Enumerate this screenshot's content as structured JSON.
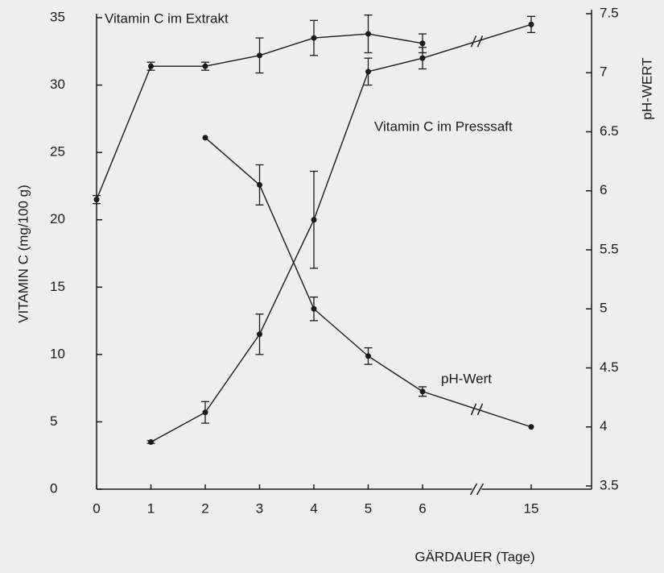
{
  "chart_data": {
    "type": "line",
    "ylabel": "VITAMIN C (mg/100 g)",
    "y2label": "pH-WERT",
    "xlabel": "GÄRDAUER (Tage)",
    "x": [
      0,
      1,
      2,
      3,
      4,
      5,
      6,
      15
    ],
    "xlim": [
      0,
      15
    ],
    "xticks": [
      0,
      1,
      2,
      3,
      4,
      5,
      6,
      15
    ],
    "ylim": [
      0,
      35
    ],
    "yticks": [
      0,
      5,
      10,
      15,
      20,
      25,
      30,
      35
    ],
    "y2lim": [
      3.5,
      7.5
    ],
    "y2ticks": [
      3.5,
      4,
      4.5,
      5,
      5.5,
      6,
      6.5,
      7,
      7.5
    ],
    "grid": false,
    "series": [
      {
        "name": "Vitamin C im Extrakt",
        "color": "#1a1a1a",
        "values": [
          21.5,
          31.4,
          31.4,
          32.2,
          33.5,
          33.8,
          33.1,
          null
        ],
        "errors": [
          0.3,
          0.3,
          0.3,
          1.3,
          1.3,
          1.4,
          0.7,
          null
        ]
      },
      {
        "name": "Vitamin C im Presssaft",
        "color": "#1a1a1a",
        "values": [
          null,
          3.5,
          5.7,
          11.5,
          20,
          31,
          32,
          34.5
        ],
        "errors": [
          null,
          0.1,
          0.8,
          1.5,
          3.6,
          1.0,
          0.8,
          0.6
        ]
      },
      {
        "name": "pH-Wert",
        "color": "#1a1a1a",
        "axis": "y2",
        "values": [
          null,
          null,
          6.45,
          6.05,
          5.0,
          4.6,
          4.3,
          4.0
        ],
        "errors": [
          null,
          null,
          0,
          0.17,
          0.1,
          0.07,
          0.04,
          0
        ]
      }
    ]
  }
}
